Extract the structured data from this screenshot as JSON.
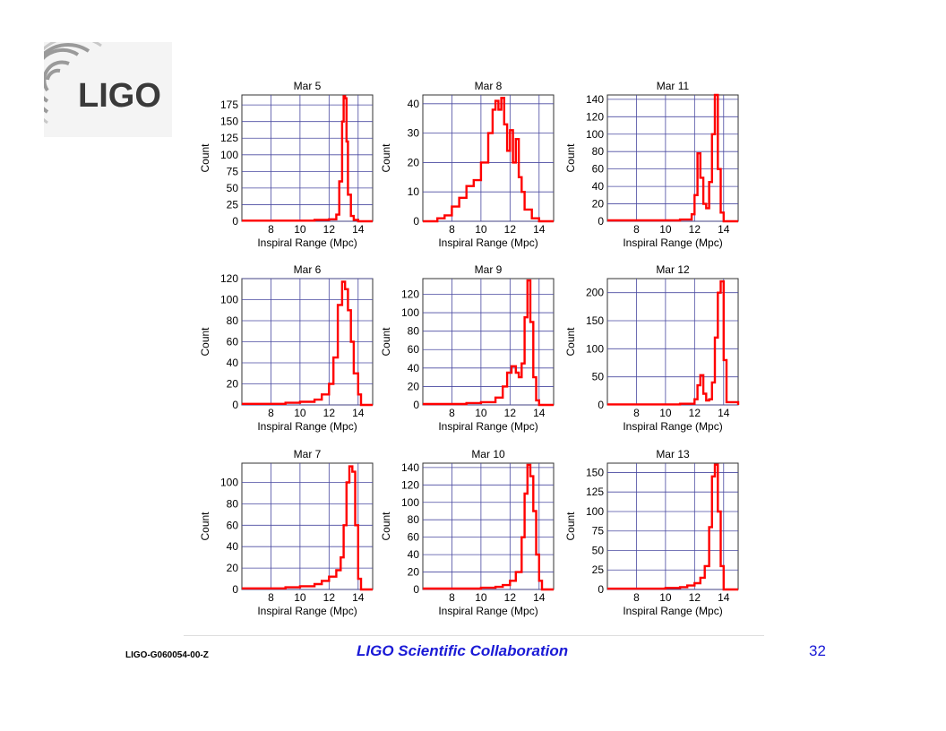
{
  "logo": {
    "text": "LIGO"
  },
  "footer": {
    "doc_id": "LIGO-G060054-00-Z",
    "collaboration": "LIGO Scientific Collaboration",
    "page_number": "32"
  },
  "colors": {
    "series": "#ff0000",
    "grid": "#4a4aa0",
    "footer_text": "#1a1ad6"
  },
  "chart_data": [
    {
      "type": "line",
      "title": "Mar 5",
      "xlabel": "Inspiral Range (Mpc)",
      "ylabel": "Count",
      "xlim": [
        6,
        15
      ],
      "ylim": [
        0,
        190
      ],
      "xticks": [
        8,
        10,
        12,
        14
      ],
      "yticks": [
        0,
        25,
        50,
        75,
        100,
        125,
        150,
        175
      ],
      "grid": true,
      "x": [
        6,
        8,
        10,
        11,
        12,
        12.5,
        12.7,
        12.9,
        13.0,
        13.1,
        13.2,
        13.3,
        13.5,
        13.7,
        14,
        15
      ],
      "y": [
        1,
        1,
        1,
        2,
        3,
        10,
        60,
        150,
        188,
        185,
        120,
        40,
        8,
        2,
        0,
        0
      ]
    },
    {
      "type": "line",
      "title": "Mar 8",
      "xlabel": "Inspiral Range (Mpc)",
      "ylabel": "Count",
      "xlim": [
        6,
        15
      ],
      "ylim": [
        0,
        43
      ],
      "xticks": [
        8,
        10,
        12,
        14
      ],
      "yticks": [
        0,
        10,
        20,
        30,
        40
      ],
      "grid": true,
      "x": [
        6,
        7,
        7.5,
        8,
        8.5,
        9,
        9.5,
        10,
        10.5,
        10.8,
        11,
        11.2,
        11.4,
        11.6,
        11.8,
        12,
        12.2,
        12.4,
        12.6,
        12.8,
        13,
        13.5,
        14,
        15
      ],
      "y": [
        0,
        1,
        2,
        5,
        8,
        12,
        14,
        20,
        30,
        38,
        41,
        38,
        42,
        33,
        24,
        31,
        20,
        28,
        15,
        10,
        4,
        1,
        0,
        0
      ]
    },
    {
      "type": "line",
      "title": "Mar 11",
      "xlabel": "Inspiral Range (Mpc)",
      "ylabel": "Count",
      "xlim": [
        6,
        15
      ],
      "ylim": [
        0,
        145
      ],
      "xticks": [
        8,
        10,
        12,
        14
      ],
      "yticks": [
        0,
        20,
        40,
        60,
        80,
        100,
        120,
        140
      ],
      "grid": true,
      "x": [
        6,
        10,
        11,
        11.8,
        12.0,
        12.2,
        12.4,
        12.6,
        12.8,
        13.0,
        13.2,
        13.4,
        13.6,
        13.8,
        14,
        15
      ],
      "y": [
        1,
        1,
        2,
        8,
        30,
        78,
        50,
        20,
        15,
        45,
        100,
        145,
        60,
        10,
        0,
        0
      ]
    },
    {
      "type": "line",
      "title": "Mar 6",
      "xlabel": "Inspiral Range (Mpc)",
      "ylabel": "Count",
      "xlim": [
        6,
        15
      ],
      "ylim": [
        0,
        120
      ],
      "xticks": [
        8,
        10,
        12,
        14
      ],
      "yticks": [
        0,
        20,
        40,
        60,
        80,
        100,
        120
      ],
      "grid": true,
      "x": [
        6,
        9,
        10,
        11,
        11.5,
        12,
        12.3,
        12.6,
        12.9,
        13.1,
        13.3,
        13.5,
        13.7,
        14,
        14.2,
        15
      ],
      "y": [
        1,
        2,
        3,
        5,
        10,
        20,
        45,
        95,
        117,
        110,
        90,
        60,
        30,
        10,
        0,
        0
      ]
    },
    {
      "type": "line",
      "title": "Mar 9",
      "xlabel": "Inspiral Range (Mpc)",
      "ylabel": "Count",
      "xlim": [
        6,
        15
      ],
      "ylim": [
        0,
        137
      ],
      "xticks": [
        8,
        10,
        12,
        14
      ],
      "yticks": [
        0,
        20,
        40,
        60,
        80,
        100,
        120
      ],
      "grid": true,
      "x": [
        6,
        9,
        10,
        11,
        11.5,
        11.8,
        12.1,
        12.4,
        12.6,
        12.8,
        13.0,
        13.2,
        13.4,
        13.6,
        13.8,
        14,
        15
      ],
      "y": [
        1,
        2,
        3,
        8,
        20,
        35,
        42,
        35,
        30,
        45,
        95,
        135,
        90,
        30,
        5,
        0,
        0
      ]
    },
    {
      "type": "line",
      "title": "Mar 12",
      "xlabel": "Inspiral Range (Mpc)",
      "ylabel": "Count",
      "xlim": [
        6,
        15
      ],
      "ylim": [
        0,
        225
      ],
      "xticks": [
        8,
        10,
        12,
        14
      ],
      "yticks": [
        0,
        50,
        100,
        150,
        200
      ],
      "grid": true,
      "x": [
        6,
        10,
        11,
        12.0,
        12.2,
        12.4,
        12.6,
        12.8,
        13.0,
        13.2,
        13.4,
        13.6,
        13.8,
        14.0,
        14.2,
        15
      ],
      "y": [
        1,
        1,
        2,
        10,
        35,
        53,
        20,
        8,
        10,
        40,
        120,
        200,
        220,
        80,
        5,
        0
      ]
    },
    {
      "type": "line",
      "title": "Mar 7",
      "xlabel": "Inspiral Range (Mpc)",
      "ylabel": "Count",
      "xlim": [
        6,
        15
      ],
      "ylim": [
        0,
        118
      ],
      "xticks": [
        8,
        10,
        12,
        14
      ],
      "yticks": [
        0,
        20,
        40,
        60,
        80,
        100
      ],
      "grid": true,
      "x": [
        6,
        9,
        10,
        11,
        11.5,
        12,
        12.5,
        12.8,
        13.0,
        13.2,
        13.4,
        13.6,
        13.8,
        14,
        14.2,
        15
      ],
      "y": [
        1,
        2,
        3,
        5,
        8,
        12,
        18,
        30,
        60,
        100,
        115,
        110,
        60,
        10,
        0,
        0
      ]
    },
    {
      "type": "line",
      "title": "Mar 10",
      "xlabel": "Inspiral Range (Mpc)",
      "ylabel": "Count",
      "xlim": [
        6,
        15
      ],
      "ylim": [
        0,
        145
      ],
      "xticks": [
        8,
        10,
        12,
        14
      ],
      "yticks": [
        0,
        20,
        40,
        60,
        80,
        100,
        120,
        140
      ],
      "grid": true,
      "x": [
        6,
        9,
        10,
        11,
        11.5,
        12,
        12.4,
        12.8,
        13.0,
        13.2,
        13.4,
        13.6,
        13.8,
        14.0,
        14.2,
        15
      ],
      "y": [
        1,
        1,
        2,
        3,
        5,
        10,
        20,
        60,
        110,
        143,
        130,
        90,
        40,
        10,
        0,
        0
      ]
    },
    {
      "type": "line",
      "title": "Mar 13",
      "xlabel": "Inspiral Range (Mpc)",
      "ylabel": "Count",
      "xlim": [
        6,
        15
      ],
      "ylim": [
        0,
        162
      ],
      "xticks": [
        8,
        10,
        12,
        14
      ],
      "yticks": [
        0,
        25,
        50,
        75,
        100,
        125,
        150
      ],
      "grid": true,
      "x": [
        6,
        10,
        11,
        11.5,
        12,
        12.4,
        12.7,
        13.0,
        13.2,
        13.4,
        13.6,
        13.8,
        14.0,
        15
      ],
      "y": [
        1,
        2,
        3,
        5,
        8,
        15,
        30,
        80,
        145,
        160,
        100,
        30,
        0,
        0
      ]
    }
  ]
}
